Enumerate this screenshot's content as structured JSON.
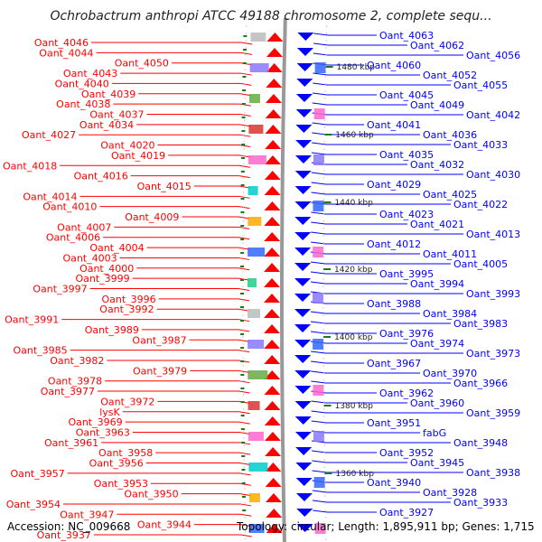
{
  "title": "Ochrobactrum anthropi ATCC 49188 chromosome 2, complete sequ...",
  "footer": {
    "accession": "Accession: NC_009668",
    "topology": "Topology: circular; Length: 1,895,911 bp; Genes: 1,715"
  },
  "colors": {
    "left_strand": "#ff0000",
    "right_strand": "#0000ff",
    "backbone": "#999999",
    "tick": "#1a7a1a"
  },
  "positions": [
    "1480 kbp",
    "1460 kbp",
    "1440 kbp",
    "1420 kbp",
    "1400 kbp",
    "1380 kbp",
    "1360 kbp"
  ],
  "left_labels": [
    "Oant_4046",
    "Oant_4044",
    "Oant_4050",
    "Oant_4043",
    "Oant_4040",
    "Oant_4039",
    "Oant_4038",
    "Oant_4037",
    "Oant_4034",
    "Oant_4027",
    "Oant_4020",
    "Oant_4019",
    "Oant_4018",
    "Oant_4016",
    "Oant_4015",
    "Oant_4014",
    "Oant_4010",
    "Oant_4009",
    "Oant_4007",
    "Oant_4006",
    "Oant_4004",
    "Oant_4003",
    "Oant_4000",
    "Oant_3999",
    "Oant_3997",
    "Oant_3996",
    "Oant_3992",
    "Oant_3991",
    "Oant_3989",
    "Oant_3987",
    "Oant_3985",
    "Oant_3982",
    "Oant_3979",
    "Oant_3978",
    "Oant_3977",
    "Oant_3972",
    "lysK",
    "Oant_3969",
    "Oant_3963",
    "Oant_3961",
    "Oant_3958",
    "Oant_3956",
    "Oant_3957",
    "Oant_3953",
    "Oant_3950",
    "Oant_3954",
    "Oant_3947",
    "Oant_3944",
    "Oant_3937"
  ],
  "right_labels": [
    "Oant_4063",
    "Oant_4062",
    "Oant_4056",
    "Oant_4060",
    "Oant_4052",
    "Oant_4055",
    "Oant_4045",
    "Oant_4049",
    "Oant_4042",
    "Oant_4041",
    "Oant_4036",
    "Oant_4033",
    "Oant_4035",
    "Oant_4032",
    "Oant_4030",
    "Oant_4029",
    "Oant_4025",
    "Oant_4022",
    "Oant_4023",
    "Oant_4021",
    "Oant_4013",
    "Oant_4012",
    "Oant_4011",
    "Oant_4005",
    "Oant_3995",
    "Oant_3994",
    "Oant_3993",
    "Oant_3988",
    "Oant_3984",
    "Oant_3983",
    "Oant_3976",
    "Oant_3974",
    "Oant_3973",
    "Oant_3967",
    "Oant_3970",
    "Oant_3966",
    "Oant_3962",
    "Oant_3960",
    "Oant_3959",
    "Oant_3951",
    "fabG",
    "Oant_3948",
    "Oant_3952",
    "Oant_3945",
    "Oant_3938",
    "Oant_3940",
    "Oant_3928",
    "Oant_3933",
    "Oant_3927"
  ]
}
